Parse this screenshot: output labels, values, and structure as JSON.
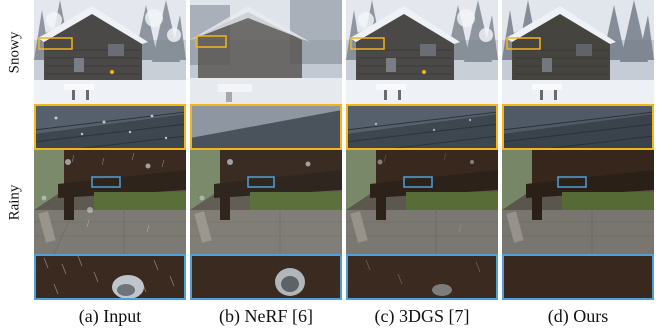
{
  "rows": [
    {
      "label": "Snowy",
      "zoom_color": "#f2b51a"
    },
    {
      "label": "Rainy",
      "zoom_color": "#4f9fd8"
    }
  ],
  "captions": [
    "(a) Input",
    "(b) NeRF [6]",
    "(c) 3DGS [7]",
    "(d) Ours"
  ]
}
